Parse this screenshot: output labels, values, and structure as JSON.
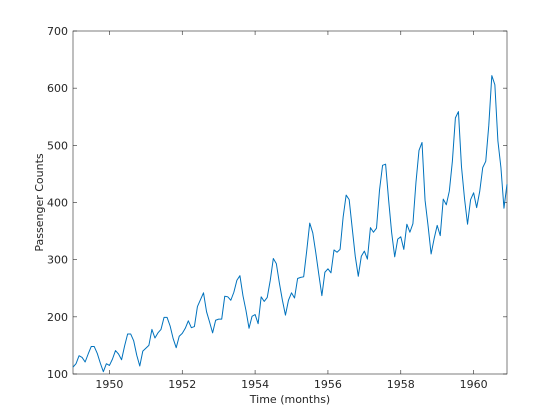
{
  "chart_data": {
    "type": "line",
    "xlabel": "Time (months)",
    "ylabel": "Passenger Counts",
    "xlim": [
      1949,
      1960.9167
    ],
    "ylim": [
      100,
      700
    ],
    "x_ticks": [
      1950,
      1952,
      1954,
      1956,
      1958,
      1960
    ],
    "y_ticks": [
      100,
      200,
      300,
      400,
      500,
      600,
      700
    ],
    "grid": false,
    "line_color": "#0072bd",
    "series": [
      {
        "x_start": 1949,
        "x_step_per_point": "1 month",
        "values": [
          112,
          118,
          132,
          129,
          121,
          135,
          148,
          148,
          136,
          119,
          104,
          118,
          115,
          126,
          141,
          135,
          125,
          149,
          170,
          170,
          158,
          133,
          114,
          140,
          145,
          150,
          178,
          163,
          172,
          178,
          199,
          199,
          184,
          162,
          146,
          166,
          171,
          180,
          193,
          181,
          183,
          218,
          230,
          242,
          209,
          191,
          172,
          194,
          196,
          196,
          236,
          235,
          229,
          243,
          264,
          272,
          237,
          211,
          180,
          201,
          204,
          188,
          235,
          227,
          234,
          264,
          302,
          293,
          259,
          229,
          203,
          229,
          242,
          233,
          267,
          269,
          270,
          315,
          364,
          347,
          312,
          274,
          237,
          278,
          284,
          277,
          317,
          313,
          318,
          374,
          413,
          405,
          355,
          306,
          271,
          306,
          315,
          301,
          356,
          348,
          355,
          422,
          465,
          467,
          404,
          347,
          305,
          336,
          340,
          318,
          362,
          348,
          363,
          435,
          491,
          505,
          404,
          359,
          310,
          337,
          360,
          342,
          406,
          396,
          420,
          472,
          548,
          559,
          463,
          407,
          362,
          405,
          417,
          391,
          419,
          461,
          472,
          535,
          622,
          606,
          508,
          461,
          390,
          432
        ]
      }
    ]
  }
}
